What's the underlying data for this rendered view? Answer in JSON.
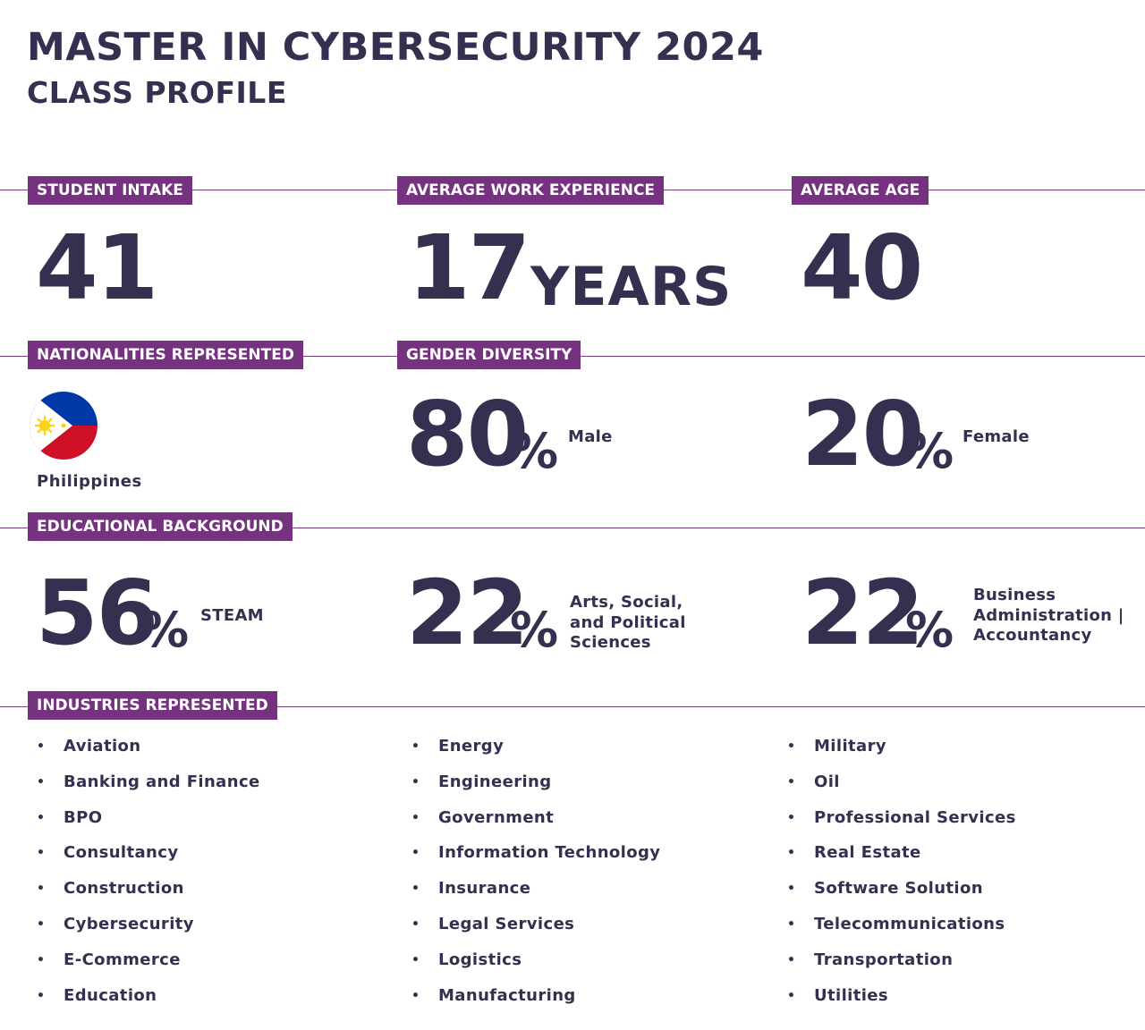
{
  "header": {
    "title": "MASTER IN CYBERSECURITY 2024",
    "subtitle": "CLASS PROFILE"
  },
  "stats": {
    "intake": {
      "label": "STUDENT INTAKE",
      "value": "41"
    },
    "work_experience": {
      "label": "AVERAGE WORK EXPERIENCE",
      "value": "17",
      "unit": "YEARS"
    },
    "age": {
      "label": "AVERAGE AGE",
      "value": "40"
    }
  },
  "nationalities": {
    "label": "NATIONALITIES REPRESENTED",
    "countries": [
      "Philippines"
    ]
  },
  "gender": {
    "label": "GENDER DIVERSITY",
    "male": {
      "value": "80",
      "unit": "%",
      "desc": "Male"
    },
    "female": {
      "value": "20",
      "unit": "%",
      "desc": "Female"
    }
  },
  "education": {
    "label": "EDUCATIONAL BACKGROUND",
    "items": [
      {
        "value": "56",
        "unit": "%",
        "desc_lines": [
          "STEAM"
        ]
      },
      {
        "value": "22",
        "unit": "%",
        "desc_lines": [
          "Arts, Social,",
          "and Political",
          "Sciences"
        ]
      },
      {
        "value": "22",
        "unit": "%",
        "desc_lines": [
          "Business",
          "Administration |",
          "Accountancy"
        ]
      }
    ]
  },
  "industries": {
    "label": "INDUSTRIES REPRESENTED",
    "bullet": "•",
    "columns": [
      [
        "Aviation",
        "Banking and Finance",
        "BPO",
        "Consultancy",
        "Construction",
        "Cybersecurity",
        "E-Commerce",
        "Education"
      ],
      [
        "Energy",
        "Engineering",
        "Government",
        "Information Technology",
        "Insurance",
        "Legal Services",
        "Logistics",
        "Manufacturing"
      ],
      [
        "Military",
        "Oil",
        "Professional Services",
        "Real Estate",
        "Software Solution",
        "Telecommunications",
        "Transportation",
        "Utilities"
      ]
    ]
  },
  "colors": {
    "label_bg": "#74327f",
    "text": "#34304f",
    "rule": "#7a3c86",
    "flag_blue": "#0038a8",
    "flag_red": "#ce1126",
    "flag_sun": "#fcd116"
  },
  "icons": {
    "flag": "philippines-flag-icon"
  }
}
